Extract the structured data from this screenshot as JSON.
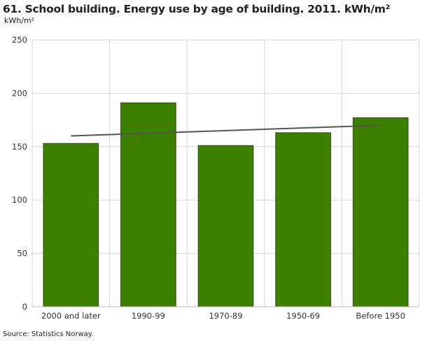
{
  "chart_data": {
    "type": "bar",
    "title": "61. School building. Energy use by age of building.  2011. kWh/m²",
    "ylabel": "kWh/m²",
    "categories": [
      "2000 and later",
      "1990-99",
      "1970-89",
      "1950-69",
      "Before 1950"
    ],
    "values": [
      153,
      191,
      151,
      163,
      177
    ],
    "trendline": {
      "start": 160,
      "end": 170
    },
    "ylim": [
      0,
      250
    ],
    "yticks": [
      0,
      50,
      100,
      150,
      200,
      250
    ],
    "grid": true,
    "colors": {
      "bar": "#3d8000",
      "bar_border": "#2a4a10",
      "trend": "#555555",
      "grid": "#d6d6d6"
    }
  },
  "source": "Source: Statistics Norway."
}
